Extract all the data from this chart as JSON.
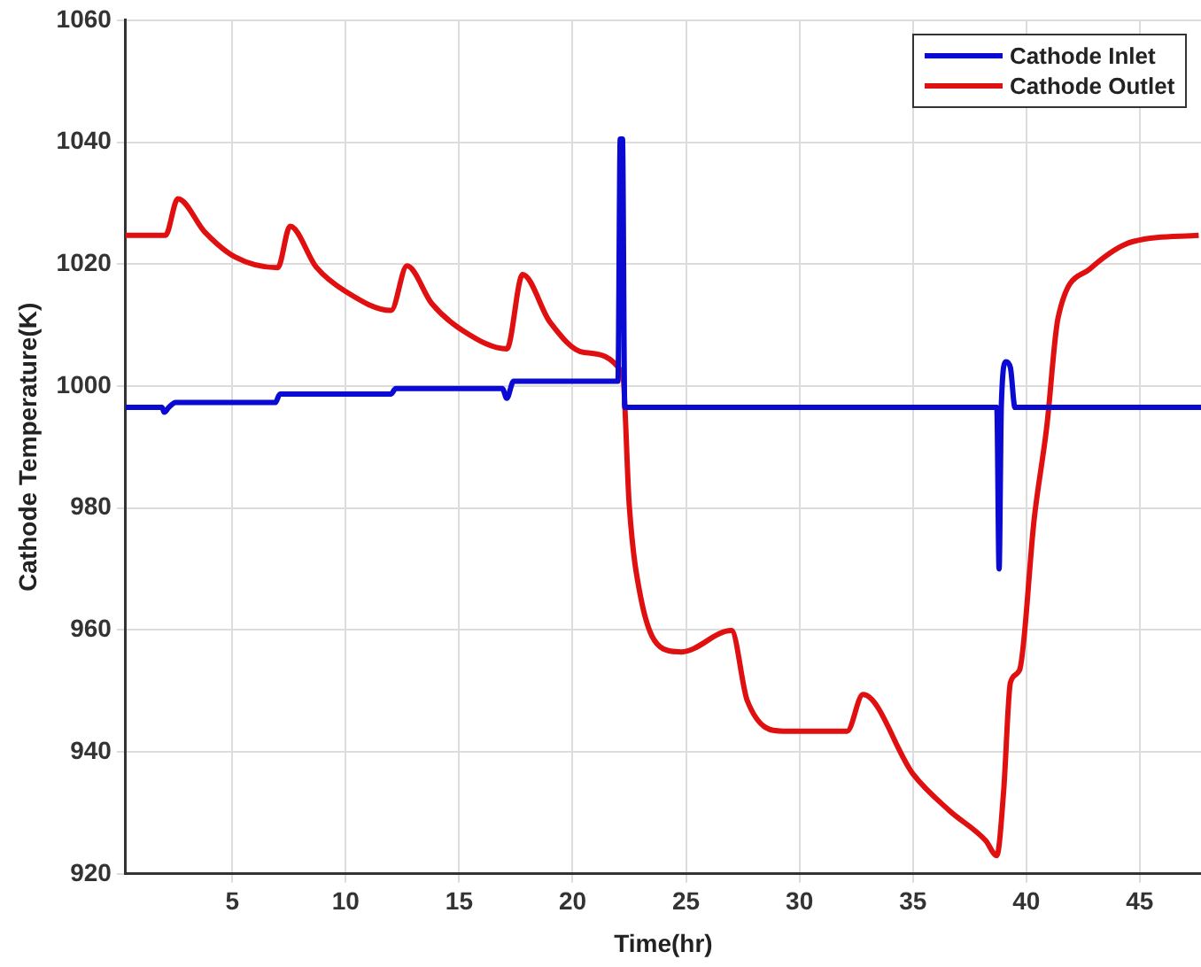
{
  "chart_data": {
    "type": "line",
    "xlabel": "Time(hr)",
    "ylabel": "Cathode Temperature(K)",
    "xlim": [
      0.3,
      47.7
    ],
    "xticks": [
      5,
      10,
      15,
      20,
      25,
      30,
      35,
      40,
      45
    ],
    "ylim": [
      920,
      1060
    ],
    "yticks": [
      920,
      940,
      960,
      980,
      1000,
      1020,
      1040,
      1060
    ],
    "grid": true,
    "legend": "top right",
    "marker": "none",
    "line_style": "solid",
    "series": [
      {
        "name": "Cathode Inlet",
        "color": "#0a0ad2",
        "x": [
          0.3,
          1.9,
          2.0,
          2.2,
          2.5,
          6.9,
          7.1,
          12.0,
          12.2,
          16.9,
          17.1,
          17.4,
          22.0,
          22.1,
          22.2,
          22.3,
          38.7,
          38.8,
          38.9,
          39.1,
          39.3,
          39.5,
          47.7
        ],
        "values": [
          996.5,
          996.5,
          995.7,
          996.5,
          997.3,
          997.3,
          998.7,
          998.7,
          999.6,
          999.6,
          998,
          1000.8,
          1000.8,
          1040.5,
          1040.5,
          996.5,
          996.5,
          970,
          997,
          1004,
          1003,
          996.5,
          996.5
        ]
      },
      {
        "name": "Cathode Outlet",
        "color": "#e01010",
        "x": [
          0.3,
          2.05,
          2.6,
          3.8,
          5.1,
          7.0,
          7.55,
          8.7,
          10.0,
          12.0,
          12.7,
          13.8,
          15.2,
          17.1,
          17.8,
          19.0,
          20.5,
          22.2,
          22.5,
          23.0,
          24.0,
          24.8,
          27.0,
          27.7,
          29.3,
          32.1,
          32.8,
          35.0,
          36.6,
          38.2,
          38.7,
          39.0,
          39.3,
          39.7,
          40.35,
          40.9,
          41.4,
          42.8,
          44.7,
          47.6
        ],
        "values": [
          1024.7,
          1024.7,
          1030.7,
          1025.2,
          1021.2,
          1019.4,
          1026.2,
          1019.5,
          1015.5,
          1012.4,
          1019.7,
          1013.5,
          1009,
          1006.1,
          1018.3,
          1010.5,
          1005.5,
          1002.1,
          980.3,
          965.4,
          956.9,
          956.4,
          959.9,
          948.4,
          943.4,
          943.4,
          949.4,
          936.4,
          930.4,
          925.5,
          923,
          933.5,
          951.4,
          953.4,
          978.3,
          993.3,
          1011.2,
          1019.2,
          1023.7,
          1024.7
        ]
      }
    ]
  }
}
